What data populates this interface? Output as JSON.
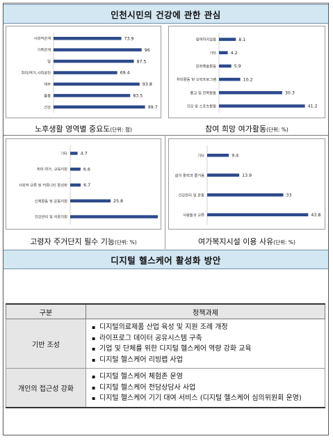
{
  "top_banner": {
    "title": "인천시민의 건강에 관한 관심"
  },
  "bottom_banner": {
    "title": "디지털 헬스케어 활성화 방안"
  },
  "charts": [
    {
      "caption_main": "노후생활 영역별 중요도",
      "caption_unit": "(단위: 점)"
    },
    {
      "caption_main": "참여 희망 여가활동",
      "caption_unit": "(단위: %)"
    },
    {
      "caption_main": "고령자 주거단지 필수 기능",
      "caption_unit": "(단위: %)"
    },
    {
      "caption_main": "여가복지시설 이용 사유",
      "caption_unit": "(단위: %)"
    }
  ],
  "chart_data": [
    {
      "type": "bar",
      "orientation": "horizontal",
      "categories": [
        "사회적관계",
        "가족관계",
        "일",
        "취미/여가,사회공헌",
        "재무",
        "돌봄",
        "건강"
      ],
      "values": [
        73.9,
        96,
        87.5,
        69.4,
        93.8,
        83.5,
        99.7
      ],
      "xlim": [
        0,
        100
      ],
      "bar_color": "#2e4a8c"
    },
    {
      "type": "bar",
      "orientation": "horizontal",
      "categories": [
        "참여하지않음",
        "기타",
        "문화예술활동",
        "취미활동 및 오락프로그램",
        "종교 및 친목활동",
        "건강 및 스포츠활동"
      ],
      "values": [
        8.1,
        4.2,
        5.9,
        10.2,
        30.3,
        41.2
      ],
      "xlim": [
        0,
        42
      ],
      "bar_color": "#2e4a8c"
    },
    {
      "type": "bar",
      "orientation": "horizontal",
      "categories": [
        "기타",
        "취미·여가, 교육지원",
        "사회적 교류 및 커뮤니티 활성화",
        "신체활동 및 운동지원",
        "건강관리 및 의료지원"
      ],
      "values": [
        4.7,
        6.6,
        6.7,
        25.8,
        56
      ],
      "xlim": [
        0,
        56
      ],
      "bar_color": "#2e4a8c"
    },
    {
      "type": "bar",
      "orientation": "horizontal",
      "categories": [
        "기타",
        "삶의 활력과 즐거움",
        "건강관리 및 운동",
        "사람들과 교류"
      ],
      "values": [
        9.4,
        13.9,
        33,
        43.8
      ],
      "xlim": [
        0,
        44
      ],
      "bar_color": "#2e4a8c"
    }
  ],
  "policy_table": {
    "header_category": "구분",
    "header_tasks": "정책과제",
    "rows": [
      {
        "category": "기반 조성",
        "items": [
          "디지털의료제품 산업 육성 및 지원 조례 개정",
          "라이프로그 데이터 공유시스템 구축",
          "기업 및 단체를 위한 디지털 헬스케어 역량 강화 교육",
          "디지털 헬스케어 리빙랩 사업"
        ]
      },
      {
        "category": "개인의 접근성 강화",
        "items": [
          "디지털 헬스케어 체험존 운영",
          "디지털 헬스케어 전담상담사 사업",
          "디지털 헬스케어 기기 대여 서비스 (디지털 헬스케어 심의위원회 운영)"
        ]
      }
    ]
  }
}
